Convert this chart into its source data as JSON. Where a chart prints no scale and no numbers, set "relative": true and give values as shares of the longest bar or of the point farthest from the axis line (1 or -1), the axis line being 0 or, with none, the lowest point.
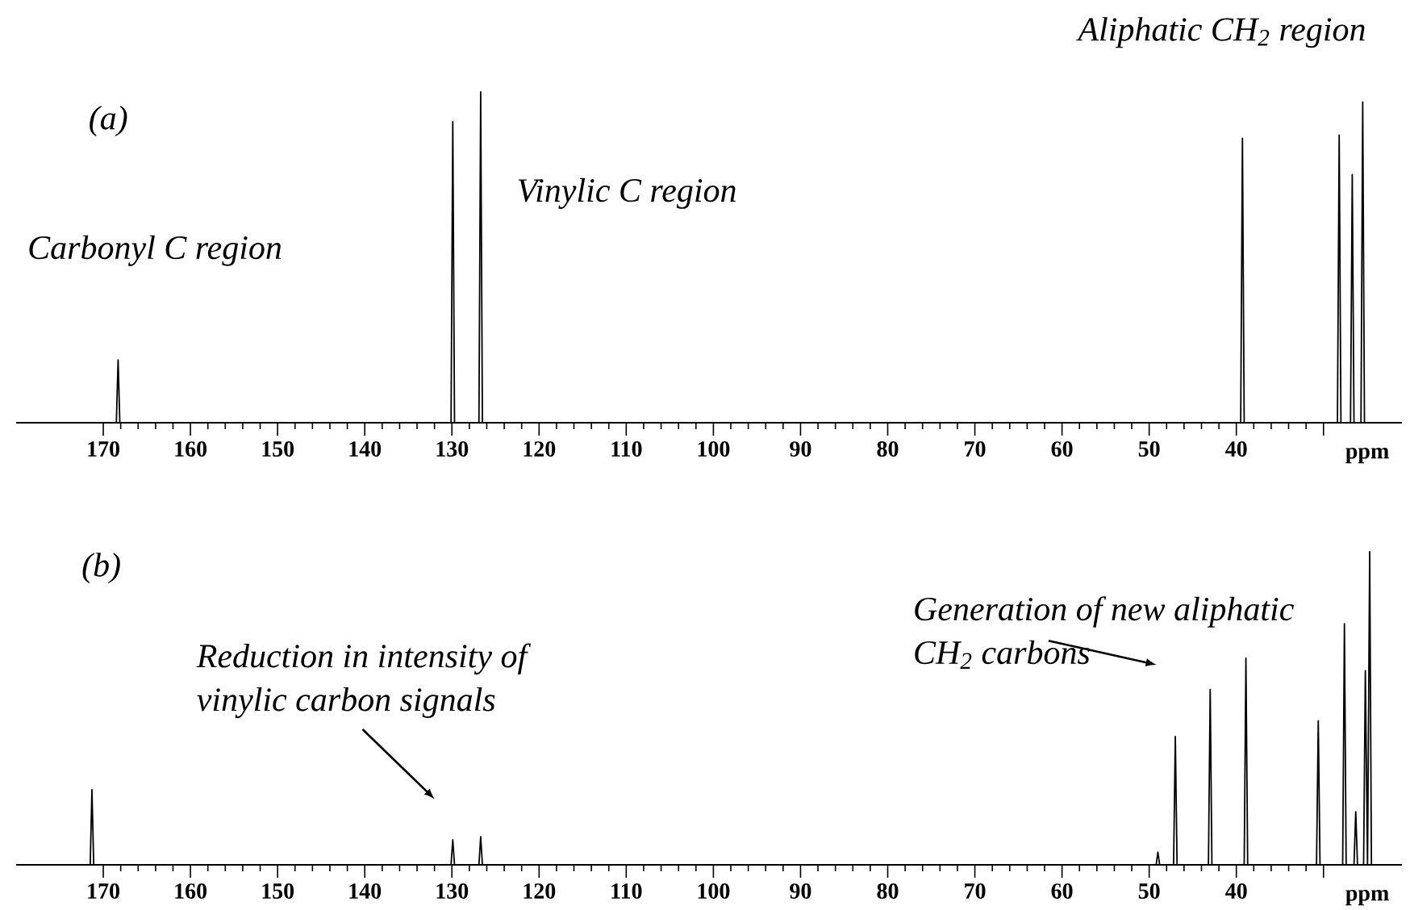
{
  "chart_data": [
    {
      "type": "line",
      "color": "#000000",
      "relative": true,
      "xlim": [
        180,
        21
      ],
      "xlabel": "ppm",
      "xticks": [
        170,
        160,
        150,
        140,
        130,
        120,
        110,
        100,
        90,
        80,
        70,
        60,
        50,
        40,
        {
          "value": 30,
          "label": null
        }
      ],
      "x": [
        180,
        168.5,
        168.3,
        168.1,
        130.1,
        129.9,
        129.7,
        126.9,
        126.7,
        126.5,
        39.5,
        39.3,
        39.1,
        28.4,
        28.2,
        28.0,
        26.9,
        26.7,
        26.5,
        25.7,
        25.5,
        25.3,
        21
      ],
      "values": [
        0,
        0,
        0.19,
        0,
        0,
        0.91,
        0,
        0,
        1.0,
        0,
        0,
        0.86,
        0,
        0,
        0.87,
        0,
        0,
        0.75,
        0,
        0,
        0.97,
        0,
        0
      ],
      "annotations": [
        "(a)",
        "Carbonyl C region",
        "Vinylic C region",
        "Aliphatic CH$_{2}$ region"
      ]
    },
    {
      "type": "line",
      "color": "#000000",
      "relative": true,
      "xlim": [
        180,
        21
      ],
      "xlabel": "ppm",
      "xticks": [
        170,
        160,
        150,
        140,
        130,
        120,
        110,
        100,
        90,
        80,
        70,
        60,
        50,
        40,
        {
          "value": 30,
          "label": null
        }
      ],
      "x": [
        180,
        171.5,
        171.3,
        171.1,
        130.1,
        129.9,
        129.7,
        126.9,
        126.7,
        126.5,
        49.2,
        49.0,
        48.8,
        47.2,
        47.0,
        46.8,
        43.2,
        43.0,
        42.8,
        39.1,
        38.9,
        38.7,
        30.8,
        30.6,
        30.4,
        27.8,
        27.6,
        27.4,
        26.5,
        26.3,
        26.1,
        25.4,
        25.2,
        24.95,
        24.7,
        24.5,
        21
      ],
      "values": [
        0,
        0,
        0.24,
        0,
        0,
        0.08,
        0,
        0,
        0.09,
        0,
        0,
        0.04,
        0,
        0,
        0.41,
        0,
        0,
        0.56,
        0,
        0,
        0.66,
        0,
        0,
        0.46,
        0,
        0,
        0.77,
        0,
        0,
        0.17,
        0,
        0,
        0.62,
        0,
        1.0,
        0,
        0
      ],
      "annotations": [
        "(b)",
        "Reduction in intensity of vinylic carbon signals",
        "Generation of new aliphatic CH$_{2}$ carbons"
      ]
    }
  ]
}
